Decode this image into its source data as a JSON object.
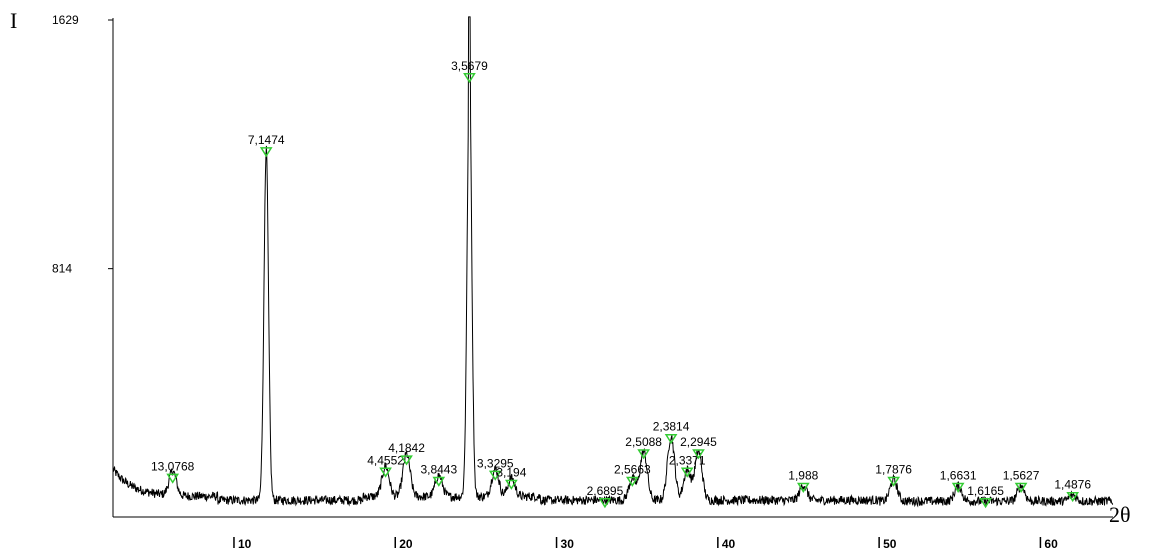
{
  "chart_data": {
    "type": "line",
    "title": "",
    "ylabel": "I",
    "xlabel": "2θ",
    "xlim": [
      2.5,
      64.5
    ],
    "ylim": [
      0,
      1629
    ],
    "x_ticks": [
      10,
      20,
      30,
      40,
      50,
      60
    ],
    "x_tick_labels": [
      "10",
      "20",
      "30",
      "40",
      "50",
      "60"
    ],
    "y_ticks": [
      814,
      1629
    ],
    "y_tick_labels": [
      "814",
      "1629"
    ],
    "marker_color": "#33cc33",
    "line_color": "#000000",
    "peaks": [
      {
        "two_theta": 6.2,
        "intensity": 120,
        "label": "13,0768"
      },
      {
        "two_theta": 12.0,
        "intensity": 1190,
        "label": "7,1474"
      },
      {
        "two_theta": 19.4,
        "intensity": 140,
        "label": "4,4552"
      },
      {
        "two_theta": 20.7,
        "intensity": 180,
        "label": "4,1842"
      },
      {
        "two_theta": 22.7,
        "intensity": 110,
        "label": "3,8443"
      },
      {
        "two_theta": 24.6,
        "intensity": 1433,
        "label": "3,5679"
      },
      {
        "two_theta": 26.2,
        "intensity": 130,
        "label": "3,3295"
      },
      {
        "two_theta": 27.2,
        "intensity": 100,
        "label": "3,194"
      },
      {
        "two_theta": 33.0,
        "intensity": 40,
        "label": "2,6895"
      },
      {
        "two_theta": 34.7,
        "intensity": 110,
        "label": "2,5663"
      },
      {
        "two_theta": 35.4,
        "intensity": 200,
        "label": "2,5088"
      },
      {
        "two_theta": 37.1,
        "intensity": 250,
        "label": "2,3814"
      },
      {
        "two_theta": 38.1,
        "intensity": 140,
        "label": "2,3371"
      },
      {
        "two_theta": 38.8,
        "intensity": 200,
        "label": "2,2945"
      },
      {
        "two_theta": 45.3,
        "intensity": 90,
        "label": "1,988"
      },
      {
        "two_theta": 50.9,
        "intensity": 110,
        "label": "1,7876"
      },
      {
        "two_theta": 54.9,
        "intensity": 90,
        "label": "1,6631"
      },
      {
        "two_theta": 56.6,
        "intensity": 40,
        "label": "1,6165"
      },
      {
        "two_theta": 58.8,
        "intensity": 90,
        "label": "1,5627"
      },
      {
        "two_theta": 62.0,
        "intensity": 60,
        "label": "1,4876"
      }
    ],
    "grid": false,
    "legend": "none"
  }
}
